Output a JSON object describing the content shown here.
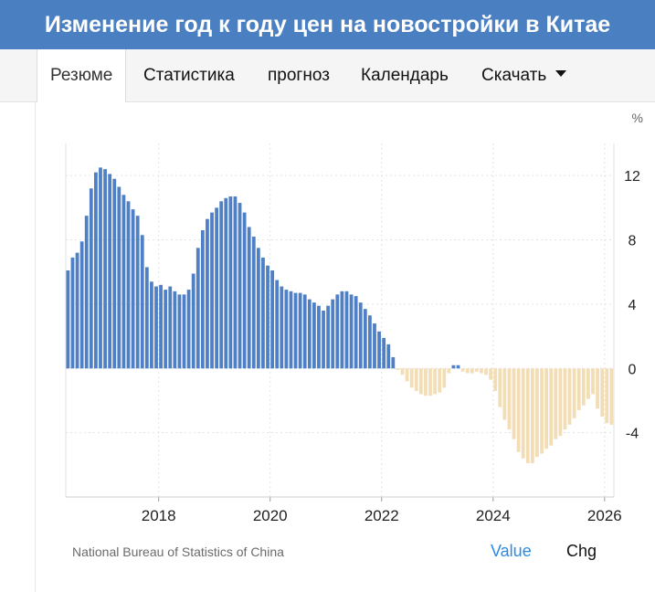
{
  "header": {
    "title": "Изменение год к году цен на новостройки в Китае"
  },
  "tabs": [
    {
      "label": "Резюме",
      "active": true
    },
    {
      "label": "Статистика",
      "active": false
    },
    {
      "label": "прогноз",
      "active": false
    },
    {
      "label": "Календарь",
      "active": false
    },
    {
      "label": "Скачать",
      "active": false,
      "dropdown": true
    }
  ],
  "footer": {
    "source": "National Bureau of Statistics of China",
    "mode_value": "Value",
    "mode_chg": "Chg"
  },
  "colors": {
    "header_bg": "#4a7fc1",
    "positive": "#4f7fc5",
    "negative": "#f3ddb5",
    "link": "#2a8ae6"
  },
  "chart_data": {
    "type": "bar",
    "unit_label": "%",
    "xlim": [
      "2016-05",
      "2026-02"
    ],
    "ylim": [
      -8,
      14
    ],
    "yticks": [
      12,
      8,
      4,
      0,
      -4
    ],
    "xticks": [
      "2018",
      "2020",
      "2022",
      "2024",
      "2026"
    ],
    "grid": true,
    "x": [
      "2016-05",
      "2016-06",
      "2016-07",
      "2016-08",
      "2016-09",
      "2016-10",
      "2016-11",
      "2016-12",
      "2017-01",
      "2017-02",
      "2017-03",
      "2017-04",
      "2017-05",
      "2017-06",
      "2017-07",
      "2017-08",
      "2017-09",
      "2017-10",
      "2017-11",
      "2017-12",
      "2018-01",
      "2018-02",
      "2018-03",
      "2018-04",
      "2018-05",
      "2018-06",
      "2018-07",
      "2018-08",
      "2018-09",
      "2018-10",
      "2018-11",
      "2018-12",
      "2019-01",
      "2019-02",
      "2019-03",
      "2019-04",
      "2019-05",
      "2019-06",
      "2019-07",
      "2019-08",
      "2019-09",
      "2019-10",
      "2019-11",
      "2019-12",
      "2020-01",
      "2020-02",
      "2020-03",
      "2020-04",
      "2020-05",
      "2020-06",
      "2020-07",
      "2020-08",
      "2020-09",
      "2020-10",
      "2020-11",
      "2020-12",
      "2021-01",
      "2021-02",
      "2021-03",
      "2021-04",
      "2021-05",
      "2021-06",
      "2021-07",
      "2021-08",
      "2021-09",
      "2021-10",
      "2021-11",
      "2021-12",
      "2022-01",
      "2022-02",
      "2022-03",
      "2022-04",
      "2022-05",
      "2022-06",
      "2022-07",
      "2022-08",
      "2022-09",
      "2022-10",
      "2022-11",
      "2022-12",
      "2023-01",
      "2023-02",
      "2023-03",
      "2023-04",
      "2023-05",
      "2023-06",
      "2023-07",
      "2023-08",
      "2023-09",
      "2023-10",
      "2023-11",
      "2023-12",
      "2024-01",
      "2024-02",
      "2024-03",
      "2024-04",
      "2024-05",
      "2024-06",
      "2024-07",
      "2024-08",
      "2024-09",
      "2024-10",
      "2024-11",
      "2024-12",
      "2025-01",
      "2025-02",
      "2025-03",
      "2025-04",
      "2025-05",
      "2025-06",
      "2025-07",
      "2025-08",
      "2025-09",
      "2025-10",
      "2025-11",
      "2025-12",
      "2026-01",
      "2026-02"
    ],
    "values": [
      6.1,
      6.9,
      7.2,
      7.9,
      9.5,
      11.2,
      12.2,
      12.5,
      12.4,
      12.1,
      11.8,
      11.3,
      10.8,
      10.4,
      9.9,
      9.5,
      8.3,
      6.3,
      5.4,
      5.1,
      5.2,
      4.9,
      5.1,
      4.8,
      4.6,
      4.6,
      4.9,
      5.9,
      7.5,
      8.6,
      9.3,
      9.7,
      10.0,
      10.4,
      10.6,
      10.7,
      10.7,
      10.3,
      9.7,
      8.8,
      8.2,
      7.5,
      6.9,
      6.4,
      6.1,
      5.5,
      5.1,
      4.9,
      4.8,
      4.7,
      4.7,
      4.6,
      4.3,
      4.1,
      3.9,
      3.6,
      3.9,
      4.3,
      4.6,
      4.8,
      4.8,
      4.6,
      4.5,
      4.1,
      3.7,
      3.3,
      2.8,
      2.3,
      1.9,
      1.5,
      0.7,
      -0.1,
      -0.4,
      -0.8,
      -1.2,
      -1.4,
      -1.6,
      -1.7,
      -1.7,
      -1.6,
      -1.5,
      -1.2,
      -0.3,
      0.2,
      0.2,
      -0.2,
      -0.3,
      -0.3,
      -0.2,
      -0.3,
      -0.4,
      -0.7,
      -1.4,
      -2.4,
      -3.2,
      -3.8,
      -4.4,
      -5.2,
      -5.6,
      -5.9,
      -5.9,
      -5.5,
      -5.3,
      -5.0,
      -4.8,
      -4.4,
      -4.2,
      -3.8,
      -3.5,
      -3.1,
      -2.6,
      -2.3,
      -1.9,
      -1.6,
      -2.5,
      -3.0,
      -3.4,
      -3.5
    ]
  }
}
